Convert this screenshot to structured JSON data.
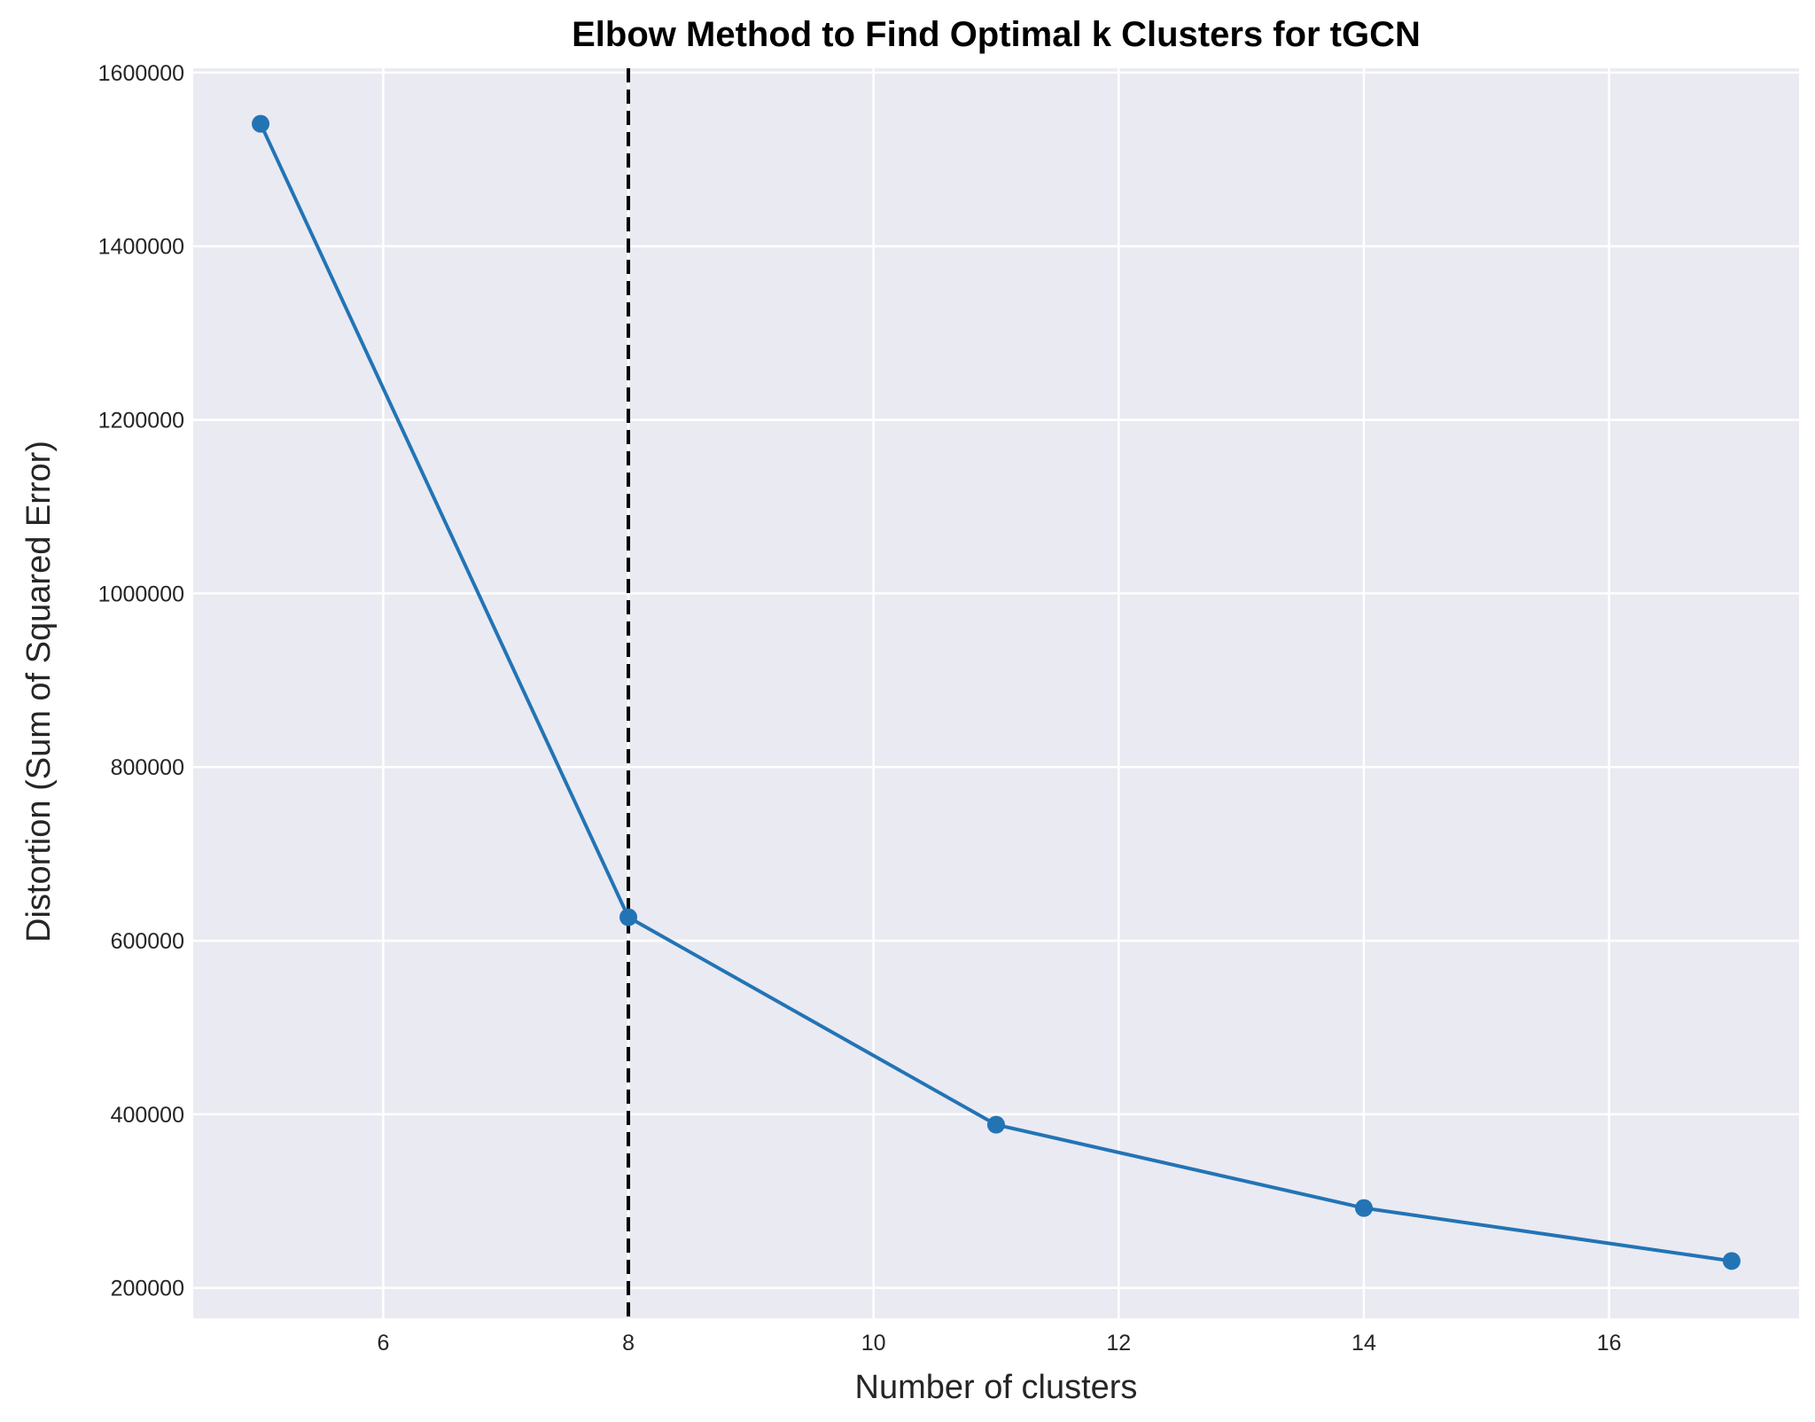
{
  "colors": {
    "plot_background": "#eaeaf2",
    "grid": "#ffffff",
    "series": "#2274b5",
    "title": "#7b0a0a",
    "reference_line": "#000000"
  },
  "chart_data": {
    "type": "line",
    "title": "Elbow Method to Find Optimal k Clusters for tGCN",
    "xlabel": "Number of clusters",
    "ylabel": "Distortion (Sum of Squared Error)",
    "xlim": [
      4.45,
      17.55
    ],
    "ylim": [
      165000,
      1605000
    ],
    "xticks": [
      6,
      8,
      10,
      12,
      14,
      16
    ],
    "yticks": [
      200000,
      400000,
      600000,
      800000,
      1000000,
      1200000,
      1400000,
      1600000
    ],
    "grid": true,
    "legend": "none",
    "series": [
      {
        "x": [
          5,
          8,
          11,
          14,
          17
        ],
        "y": [
          1541000,
          627000,
          388000,
          292000,
          231000
        ],
        "marker": "circle",
        "color": "#2274b5"
      }
    ],
    "vertical_line": {
      "x": 8,
      "style": "dashed",
      "color": "#000000"
    }
  }
}
